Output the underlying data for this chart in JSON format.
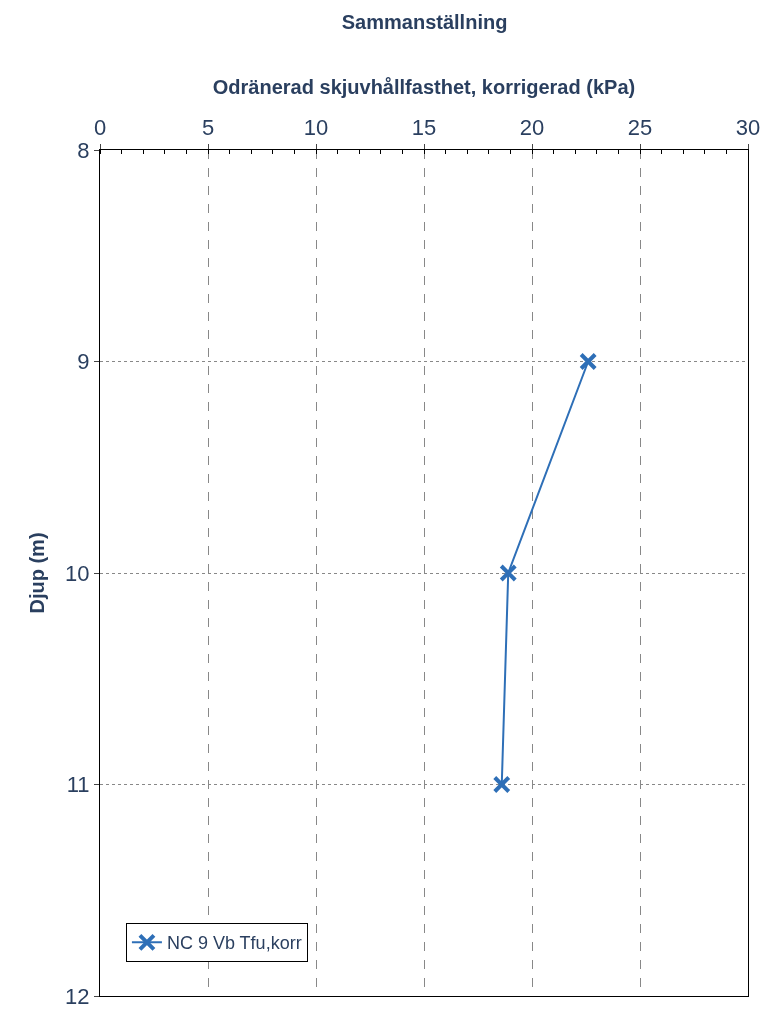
{
  "chart_data": {
    "type": "line",
    "title": "Sammanställning",
    "xlabel": "Odränerad skjuvhållfasthet, korrigerad (kPa)",
    "ylabel": "Djup (m)",
    "x": [
      22.6,
      18.9,
      18.6
    ],
    "series": [
      {
        "name": "NC 9 Vb Tfu,korr",
        "color": "#2e6fb7",
        "values": [
          9,
          10,
          11
        ]
      }
    ],
    "xlim": [
      0,
      30
    ],
    "xticks": [
      0,
      5,
      10,
      15,
      20,
      25,
      30
    ],
    "ylim": [
      12,
      8
    ],
    "yticks": [
      8,
      9,
      10,
      11,
      12
    ],
    "grid": true,
    "legend": "bottom left",
    "marker": "cross",
    "line_style": "solid"
  }
}
